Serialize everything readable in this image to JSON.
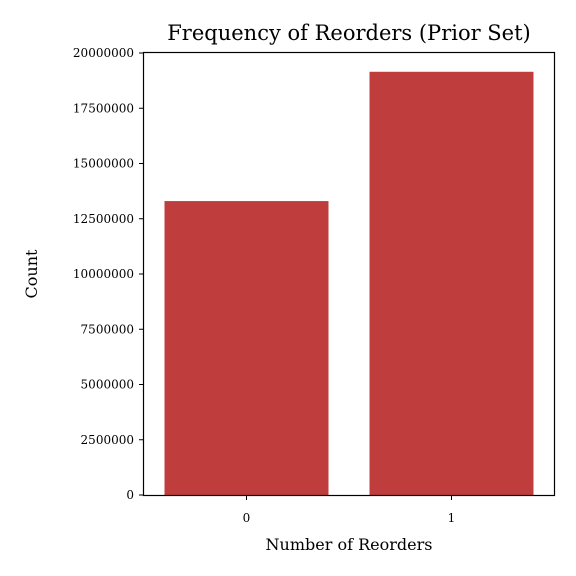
{
  "chart_data": {
    "type": "bar",
    "title": "Frequency of Reorders (Prior Set)",
    "xlabel": "Number of Reorders",
    "ylabel": "Count",
    "categories": [
      "0",
      "1"
    ],
    "values": [
      13300000,
      19150000
    ],
    "ylim": [
      0,
      20000000
    ],
    "yticks": [
      "0",
      "2500000",
      "5000000",
      "7500000",
      "10000000",
      "12500000",
      "15000000",
      "17500000",
      "20000000"
    ],
    "yticks_values": [
      0,
      2500000,
      5000000,
      7500000,
      10000000,
      12500000,
      15000000,
      17500000,
      20000000
    ],
    "grid": false,
    "legend": "none",
    "bar_color": "#c03d3e"
  }
}
